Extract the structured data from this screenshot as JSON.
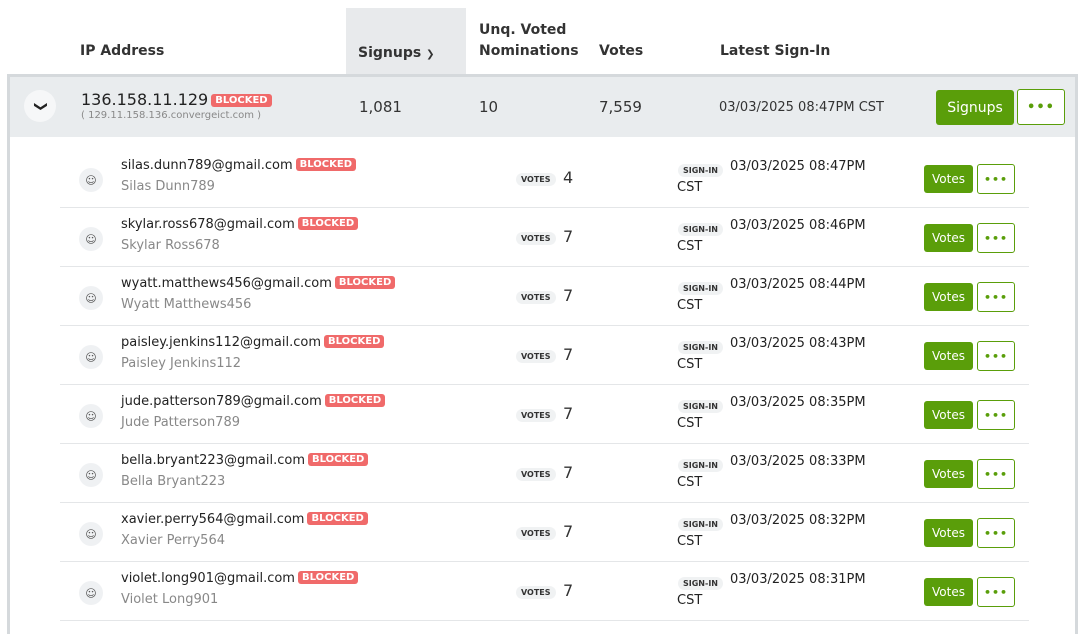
{
  "columns": {
    "ip": "IP Address",
    "signups": "Signups",
    "signups_sort_icon": "chevron-down",
    "nominations_line1": "Unq. Voted",
    "nominations_line2": "Nominations",
    "votes": "Votes",
    "latest": "Latest Sign-In"
  },
  "ip_row": {
    "ip": "136.158.11.129",
    "badge": "BLOCKED",
    "host": "( 129.11.158.136.convergeict.com )",
    "signups": "1,081",
    "nominations": "10",
    "votes": "7,559",
    "latest": "03/03/2025 08:47PM CST",
    "signups_button": "Signups",
    "more_button": "•••"
  },
  "colors": {
    "accent": "#5a9e0a",
    "blocked": "#f06a6a"
  },
  "labels": {
    "votes": "VOTES",
    "signin": "SIGN-IN",
    "badge": "BLOCKED",
    "votes_button": "Votes",
    "more_button": "•••"
  },
  "users": [
    {
      "email": "silas.dunn789@gmail.com",
      "name": "Silas Dunn789",
      "votes": "4",
      "date": "03/03/2025 08:47PM",
      "tz": "CST"
    },
    {
      "email": "skylar.ross678@gmail.com",
      "name": "Skylar Ross678",
      "votes": "7",
      "date": "03/03/2025 08:46PM",
      "tz": "CST"
    },
    {
      "email": "wyatt.matthews456@gmail.com",
      "name": "Wyatt Matthews456",
      "votes": "7",
      "date": "03/03/2025 08:44PM",
      "tz": "CST"
    },
    {
      "email": "paisley.jenkins112@gmail.com",
      "name": "Paisley Jenkins112",
      "votes": "7",
      "date": "03/03/2025 08:43PM",
      "tz": "CST"
    },
    {
      "email": "jude.patterson789@gmail.com",
      "name": "Jude Patterson789",
      "votes": "7",
      "date": "03/03/2025 08:35PM",
      "tz": "CST"
    },
    {
      "email": "bella.bryant223@gmail.com",
      "name": "Bella Bryant223",
      "votes": "7",
      "date": "03/03/2025 08:33PM",
      "tz": "CST"
    },
    {
      "email": "xavier.perry564@gmail.com",
      "name": "Xavier Perry564",
      "votes": "7",
      "date": "03/03/2025 08:32PM",
      "tz": "CST"
    },
    {
      "email": "violet.long901@gmail.com",
      "name": "Violet Long901",
      "votes": "7",
      "date": "03/03/2025 08:31PM",
      "tz": "CST"
    }
  ]
}
